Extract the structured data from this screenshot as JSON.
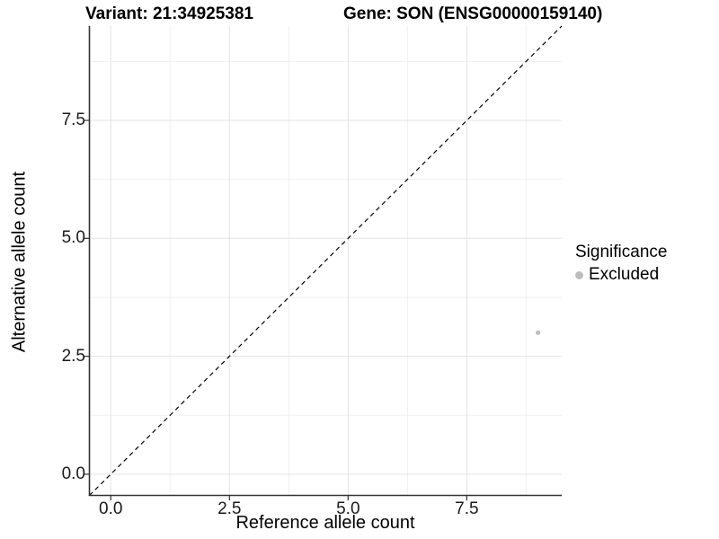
{
  "titles": {
    "variant": "Variant: 21:34925381",
    "gene": "Gene: SON (ENSG00000159140)"
  },
  "chart_data": {
    "type": "scatter",
    "title": "Variant: 21:34925381   Gene: SON (ENSG00000159140)",
    "xlabel": "Reference allele count",
    "ylabel": "Alternative allele count",
    "xlim": [
      -0.45,
      9.5
    ],
    "ylim": [
      -0.45,
      9.5
    ],
    "x_ticks": [
      0,
      2.5,
      5,
      7.5
    ],
    "x_tick_labels": [
      "0.0",
      "2.5",
      "5.0",
      "7.5"
    ],
    "y_ticks": [
      0,
      2.5,
      5,
      7.5
    ],
    "y_tick_labels": [
      "0.0",
      "2.5",
      "5.0",
      "7.5"
    ],
    "minor_ticks": [
      1.25,
      3.75,
      6.25,
      8.75
    ],
    "grid": true,
    "reference_line": {
      "kind": "identity y=x",
      "style": "dashed",
      "color": "#000000"
    },
    "series": [
      {
        "name": "Excluded",
        "color": "#bebebe",
        "points": [
          {
            "x": 9,
            "y": 3
          }
        ]
      }
    ],
    "legend": {
      "title": "Significance",
      "position": "right",
      "items": [
        {
          "label": "Excluded",
          "color": "#bebebe"
        }
      ]
    }
  }
}
